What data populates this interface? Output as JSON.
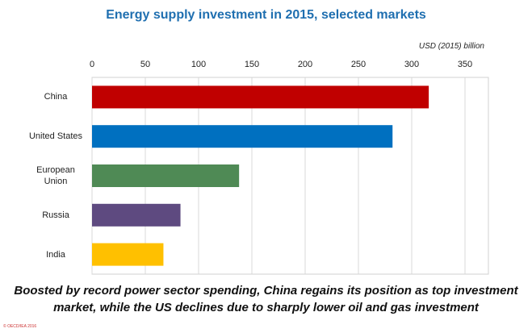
{
  "chart_data": {
    "type": "hbar",
    "title": "Energy supply investment in 2015, selected markets",
    "x_label": "USD (2015) billion",
    "categories": [
      "China",
      "United States",
      "European Union",
      "Russia",
      "India"
    ],
    "values": [
      316,
      282,
      138,
      83,
      67
    ],
    "colors": [
      "#c00000",
      "#0070c0",
      "#4f8a55",
      "#5e4a80",
      "#ffc000"
    ],
    "xlim": [
      0,
      350
    ],
    "xticks": [
      0,
      50,
      100,
      150,
      200,
      250,
      300,
      350
    ],
    "grid": true,
    "caption": "Boosted by record power sector spending, China regains its position as top investment market, while the US declines due to sharply lower oil and gas investment",
    "source": "© OECD/IEA 2016"
  }
}
